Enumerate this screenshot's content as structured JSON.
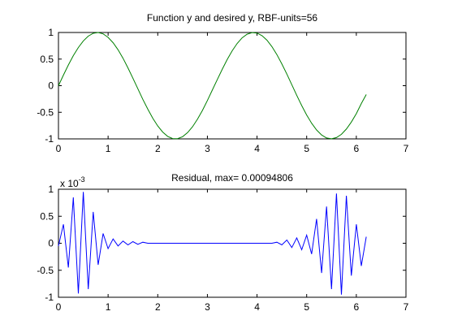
{
  "chart_data": [
    {
      "type": "line",
      "title": "Function y and desired y, RBF-units=56",
      "xlabel": "",
      "ylabel": "",
      "xlim": [
        0,
        7
      ],
      "ylim": [
        -1,
        1
      ],
      "xticks": [
        "0",
        "1",
        "2",
        "3",
        "4",
        "5",
        "6",
        "7"
      ],
      "yticks": [
        "-1",
        "-0.5",
        "0",
        "0.5",
        "1"
      ],
      "grid": false,
      "line_color": "#008000",
      "series": [
        {
          "x": [
            0,
            0.1,
            0.2,
            0.3,
            0.4,
            0.5,
            0.6,
            0.7,
            0.8,
            0.9,
            1.0,
            1.1,
            1.2,
            1.3,
            1.4,
            1.5,
            1.6,
            1.7,
            1.8,
            1.9,
            2.0,
            2.1,
            2.2,
            2.3,
            2.4,
            2.5,
            2.6,
            2.7,
            2.8,
            2.9,
            3.0,
            3.1,
            3.2,
            3.3,
            3.4,
            3.5,
            3.6,
            3.7,
            3.8,
            3.9,
            4.0,
            4.1,
            4.2,
            4.3,
            4.4,
            4.5,
            4.6,
            4.7,
            4.8,
            4.9,
            5.0,
            5.1,
            5.2,
            5.3,
            5.4,
            5.5,
            5.6,
            5.7,
            5.8,
            5.9,
            6.0,
            6.1,
            6.2
          ],
          "y": [
            0,
            0.199,
            0.389,
            0.565,
            0.717,
            0.841,
            0.932,
            0.985,
            1.0,
            0.974,
            0.909,
            0.808,
            0.675,
            0.516,
            0.335,
            0.141,
            -0.058,
            -0.256,
            -0.443,
            -0.612,
            -0.757,
            -0.872,
            -0.952,
            -0.994,
            -0.996,
            -0.959,
            -0.883,
            -0.773,
            -0.631,
            -0.465,
            -0.279,
            -0.083,
            0.117,
            0.312,
            0.494,
            0.657,
            0.794,
            0.899,
            0.968,
            0.999,
            0.989,
            0.941,
            0.855,
            0.735,
            0.585,
            0.41,
            0.219,
            0.019,
            -0.181,
            -0.374,
            -0.551,
            -0.706,
            -0.832,
            -0.926,
            -0.983,
            -0.999,
            -0.976,
            -0.914,
            -0.815,
            -0.684,
            -0.525,
            -0.336,
            -0.167
          ]
        }
      ]
    },
    {
      "type": "line",
      "title": "Residual, max= 0.00094806",
      "multiplier_label": "x 10",
      "multiplier_exponent": "-3",
      "xlabel": "",
      "ylabel": "",
      "xlim": [
        0,
        7
      ],
      "ylim": [
        -1,
        1
      ],
      "xticks": [
        "0",
        "1",
        "2",
        "3",
        "4",
        "5",
        "6",
        "7"
      ],
      "yticks": [
        "-1",
        "-0.5",
        "0",
        "0.5",
        "1"
      ],
      "grid": false,
      "line_color": "#0000ff",
      "series": [
        {
          "x": [
            0,
            0.1,
            0.2,
            0.3,
            0.4,
            0.5,
            0.6,
            0.7,
            0.8,
            0.9,
            1.0,
            1.1,
            1.2,
            1.3,
            1.4,
            1.5,
            1.6,
            1.7,
            1.8,
            1.9,
            2.0,
            2.1,
            2.2,
            2.3,
            2.4,
            2.5,
            2.6,
            2.7,
            2.8,
            2.9,
            3.0,
            3.1,
            3.2,
            3.3,
            3.4,
            3.5,
            3.6,
            3.7,
            3.8,
            3.9,
            4.0,
            4.1,
            4.2,
            4.3,
            4.4,
            4.5,
            4.6,
            4.7,
            4.8,
            4.9,
            5.0,
            5.1,
            5.2,
            5.3,
            5.4,
            5.5,
            5.6,
            5.7,
            5.8,
            5.9,
            6.0,
            6.1,
            6.2
          ],
          "y": [
            -0.05,
            0.35,
            -0.45,
            0.85,
            -0.93,
            0.95,
            -0.85,
            0.58,
            -0.4,
            0.18,
            -0.1,
            0.08,
            -0.05,
            0.04,
            -0.03,
            0.03,
            -0.02,
            0.02,
            0,
            0,
            0,
            0,
            0,
            0,
            0,
            0,
            0,
            0,
            0,
            0,
            0,
            0,
            0,
            0,
            0,
            0,
            0,
            0,
            0,
            0,
            0,
            0,
            0,
            0,
            0.02,
            -0.03,
            0.06,
            -0.08,
            0.1,
            -0.12,
            0.15,
            -0.2,
            0.45,
            -0.55,
            0.68,
            -0.85,
            0.92,
            -0.95,
            0.88,
            -0.6,
            0.35,
            -0.42,
            0.12
          ]
        }
      ]
    }
  ]
}
